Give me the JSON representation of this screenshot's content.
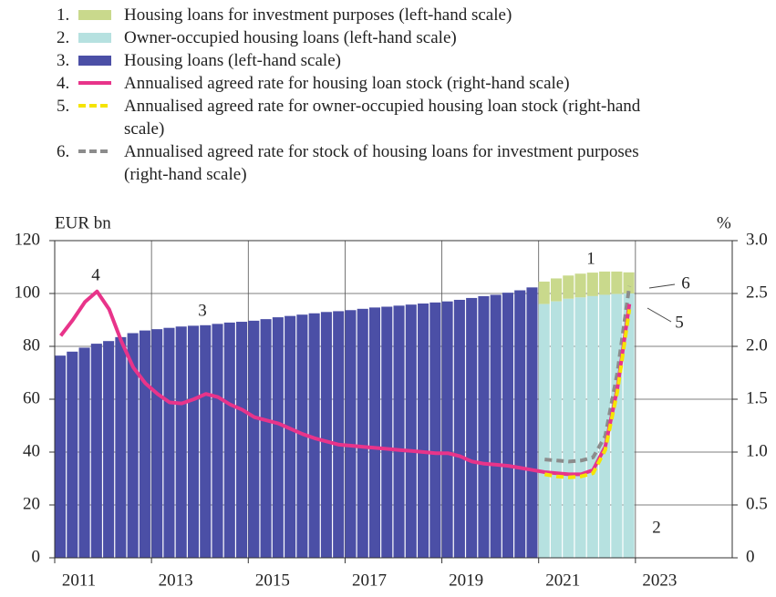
{
  "chart_data": {
    "type": "bar",
    "y_label": "EUR bn",
    "y2_label": "%",
    "xlim": [
      2011,
      2025
    ],
    "xticks": [
      2011,
      2013,
      2015,
      2017,
      2019,
      2021,
      2023
    ],
    "ylim": [
      0,
      120
    ],
    "yticks": [
      0,
      20,
      40,
      60,
      80,
      100,
      120
    ],
    "y2lim": [
      0,
      3
    ],
    "y2ticks": [
      0,
      0.5,
      {
        "value": 1,
        "label": "1.0"
      },
      1.5,
      {
        "value": 2,
        "label": "2.0"
      },
      2.5,
      {
        "value": 3,
        "label": "3.0"
      }
    ],
    "grid": true,
    "legend_numbers": [
      "1.",
      "2.",
      "3.",
      "4.",
      "5.",
      "6."
    ],
    "annotations": [
      "1",
      "2",
      "3",
      "4",
      "5",
      "6"
    ],
    "x": [
      2011.125,
      2011.375,
      2011.625,
      2011.875,
      2012.125,
      2012.375,
      2012.625,
      2012.875,
      2013.125,
      2013.375,
      2013.625,
      2013.875,
      2014.125,
      2014.375,
      2014.625,
      2014.875,
      2015.125,
      2015.375,
      2015.625,
      2015.875,
      2016.125,
      2016.375,
      2016.625,
      2016.875,
      2017.125,
      2017.375,
      2017.625,
      2017.875,
      2018.125,
      2018.375,
      2018.625,
      2018.875,
      2019.125,
      2019.375,
      2019.625,
      2019.875,
      2020.125,
      2020.375,
      2020.625,
      2020.875,
      2021.125,
      2021.375,
      2021.625,
      2021.875,
      2022.125,
      2022.375,
      2022.625,
      2022.875
    ],
    "series": [
      {
        "name": "Housing loans for investment purposes (left-hand scale)",
        "kind": "bar",
        "stack_on": 1,
        "color": "#c9d98c",
        "values": [
          null,
          null,
          null,
          null,
          null,
          null,
          null,
          null,
          null,
          null,
          null,
          null,
          null,
          null,
          null,
          null,
          null,
          null,
          null,
          null,
          null,
          null,
          null,
          null,
          null,
          null,
          null,
          null,
          null,
          null,
          null,
          null,
          null,
          null,
          null,
          null,
          null,
          null,
          null,
          null,
          8.5,
          8.7,
          8.8,
          9,
          8.9,
          8.8,
          8.5,
          8
        ]
      },
      {
        "name": "Owner-occupied housing loans (left-hand scale)",
        "kind": "bar",
        "color": "#b6e1e0",
        "values": [
          null,
          null,
          null,
          null,
          null,
          null,
          null,
          null,
          null,
          null,
          null,
          null,
          null,
          null,
          null,
          null,
          null,
          null,
          null,
          null,
          null,
          null,
          null,
          null,
          null,
          null,
          null,
          null,
          null,
          null,
          null,
          null,
          null,
          null,
          null,
          null,
          null,
          null,
          null,
          null,
          96,
          97,
          98,
          98.5,
          99,
          99.5,
          99.8,
          100
        ]
      },
      {
        "name": "Housing loans (left-hand scale)",
        "kind": "bar",
        "color": "#4b4fa6",
        "values": [
          76.5,
          78,
          79.5,
          81,
          82,
          83.5,
          85,
          86,
          86.5,
          87,
          87.5,
          87.8,
          88,
          88.5,
          89,
          89.3,
          89.7,
          90.3,
          91,
          91.5,
          92,
          92.5,
          93,
          93.3,
          93.7,
          94.2,
          94.7,
          95,
          95.4,
          95.8,
          96.2,
          96.6,
          97,
          97.6,
          98.3,
          99,
          99.5,
          100.3,
          101.2,
          102.3,
          null,
          null,
          null,
          null,
          null,
          null,
          null,
          null
        ]
      },
      {
        "name": "Annualised agreed rate for housing loan stock (right-hand scale)",
        "kind": "line",
        "axis": "y2",
        "color": "#e8348a",
        "dashed": false,
        "values": [
          2.1,
          2.25,
          2.42,
          2.52,
          2.35,
          2.05,
          1.8,
          1.65,
          1.55,
          1.47,
          1.46,
          1.5,
          1.55,
          1.52,
          1.45,
          1.4,
          1.33,
          1.3,
          1.27,
          1.22,
          1.17,
          1.13,
          1.1,
          1.07,
          1.06,
          1.05,
          1.04,
          1.03,
          1.02,
          1.01,
          1,
          0.99,
          0.99,
          0.96,
          0.91,
          0.89,
          0.88,
          0.87,
          0.85,
          0.83,
          0.81,
          0.8,
          0.79,
          0.79,
          0.83,
          1.05,
          1.6,
          2.4
        ]
      },
      {
        "name": "Annualised agreed rate for owner-occupied housing loan stock (right-hand scale)",
        "kind": "line",
        "axis": "y2",
        "color": "#f5e400",
        "dashed": true,
        "values": [
          null,
          null,
          null,
          null,
          null,
          null,
          null,
          null,
          null,
          null,
          null,
          null,
          null,
          null,
          null,
          null,
          null,
          null,
          null,
          null,
          null,
          null,
          null,
          null,
          null,
          null,
          null,
          null,
          null,
          null,
          null,
          null,
          null,
          null,
          null,
          null,
          null,
          null,
          null,
          null,
          0.79,
          0.77,
          0.76,
          0.77,
          0.8,
          1.02,
          1.57,
          2.35
        ]
      },
      {
        "name": "Annualised agreed rate for stock of housing loans for investment purposes (right-hand scale)",
        "kind": "line",
        "axis": "y2",
        "color": "#8c8c8c",
        "dashed": true,
        "values": [
          null,
          null,
          null,
          null,
          null,
          null,
          null,
          null,
          null,
          null,
          null,
          null,
          null,
          null,
          null,
          null,
          null,
          null,
          null,
          null,
          null,
          null,
          null,
          null,
          null,
          null,
          null,
          null,
          null,
          null,
          null,
          null,
          null,
          null,
          null,
          null,
          null,
          null,
          null,
          null,
          0.93,
          0.92,
          0.91,
          0.92,
          0.95,
          1.15,
          1.75,
          2.57
        ]
      }
    ]
  }
}
